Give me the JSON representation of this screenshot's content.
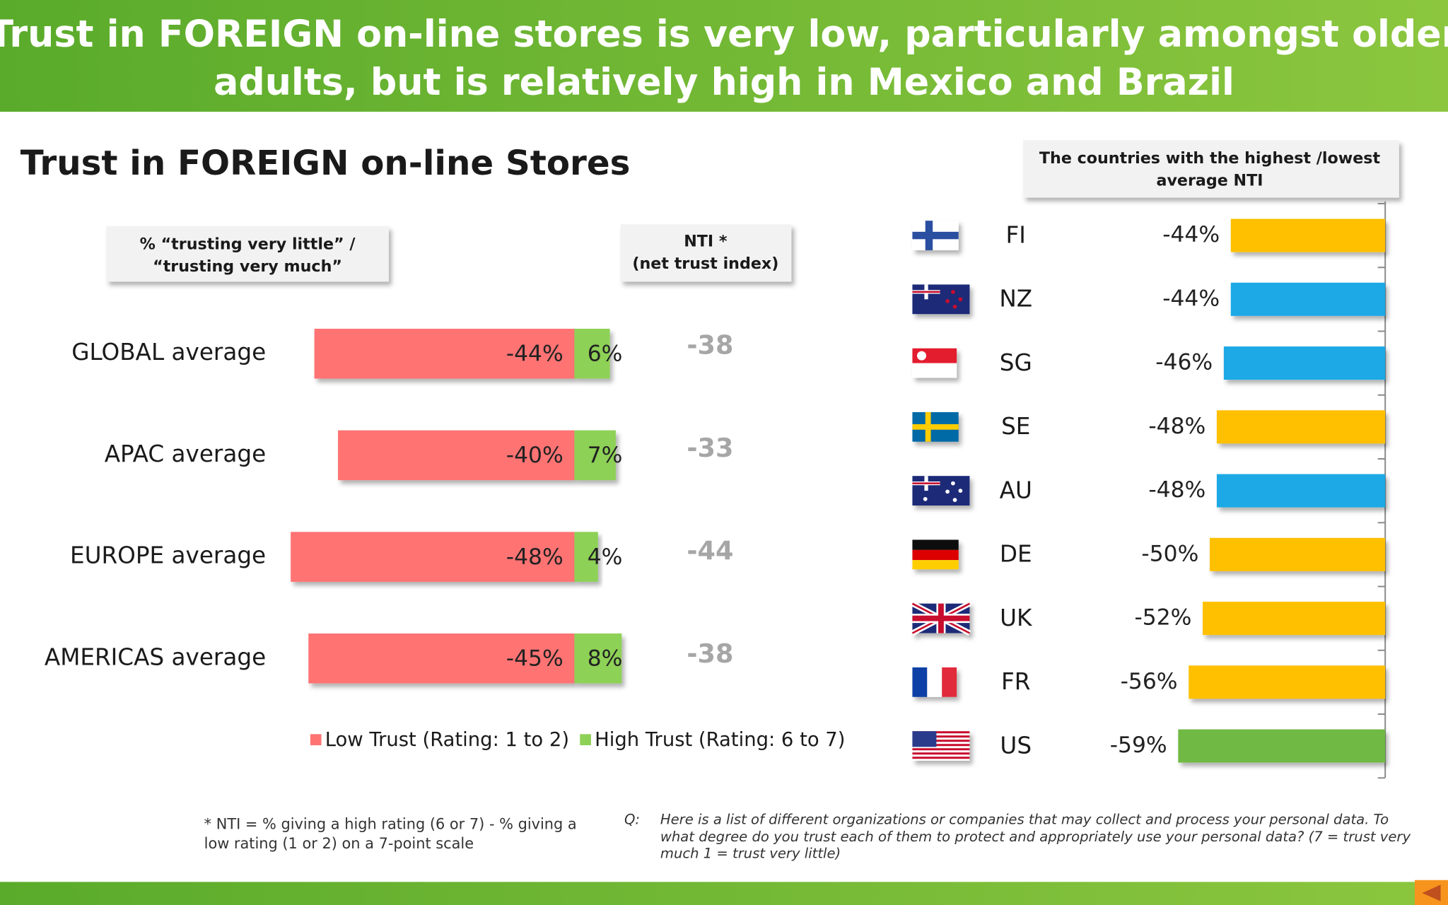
{
  "header": {
    "title": [
      "Trust in FOREIGN on-line stores is very low, particularly amongst older",
      "adults, but is relatively high in Mexico and Brazil"
    ]
  },
  "chart_data": [
    {
      "type": "bar",
      "orientation": "horizontal",
      "stacked": true,
      "title": "Trust in FOREIGN on-line Stores",
      "subtitle": [
        "% “trusting very  little” /",
        "“trusting very much”"
      ],
      "categories": [
        "GLOBAL average",
        "APAC average",
        "EUROPE average",
        "AMERICAS average"
      ],
      "series": [
        {
          "name": "Low Trust (Rating: 1 to 2)",
          "color": "#ff7373",
          "values": [
            -44,
            -40,
            -48,
            -45
          ],
          "value_labels": [
            "-44%",
            "-40%",
            "-48%",
            "-45%"
          ]
        },
        {
          "name": "High Trust (Rating: 6 to 7)",
          "color": "#8dd157",
          "values": [
            6,
            7,
            4,
            8
          ],
          "value_labels": [
            "6%",
            "7%",
            "4%",
            "8%"
          ]
        }
      ],
      "nti": {
        "title": [
          "NTI *",
          "(net trust index)"
        ],
        "values": [
          -38,
          -33,
          -44,
          -38
        ]
      }
    },
    {
      "type": "bar",
      "orientation": "horizontal",
      "title": [
        "The countries with the highest /lowest",
        "average NTI"
      ],
      "categories": [
        "FI",
        "NZ",
        "SG",
        "SE",
        "AU",
        "DE",
        "UK",
        "FR",
        "US"
      ],
      "values": [
        -44,
        -44,
        -46,
        -48,
        -48,
        -50,
        -52,
        -56,
        -59
      ],
      "value_labels": [
        "-44%",
        "-44%",
        "-46%",
        "-48%",
        "-48%",
        "-50%",
        "-52%",
        "-56%",
        "-59%"
      ],
      "colors": [
        "#ffc000",
        "#1fa9e6",
        "#1fa9e6",
        "#ffc000",
        "#1fa9e6",
        "#ffc000",
        "#ffc000",
        "#ffc000",
        "#70b944"
      ]
    }
  ],
  "footnote": [
    "* NTI = % giving a high rating (6 or 7) - % giving a",
    "low rating (1 or 2) on a 7-point scale"
  ],
  "question": {
    "label": "Q:",
    "lines": [
      "Here is a list of different organizations or companies that may collect and process your personal data.  To",
      "what degree do you trust each of them to protect and appropriately use your personal data? (7 = trust very",
      "much 1 = trust very little)"
    ]
  }
}
